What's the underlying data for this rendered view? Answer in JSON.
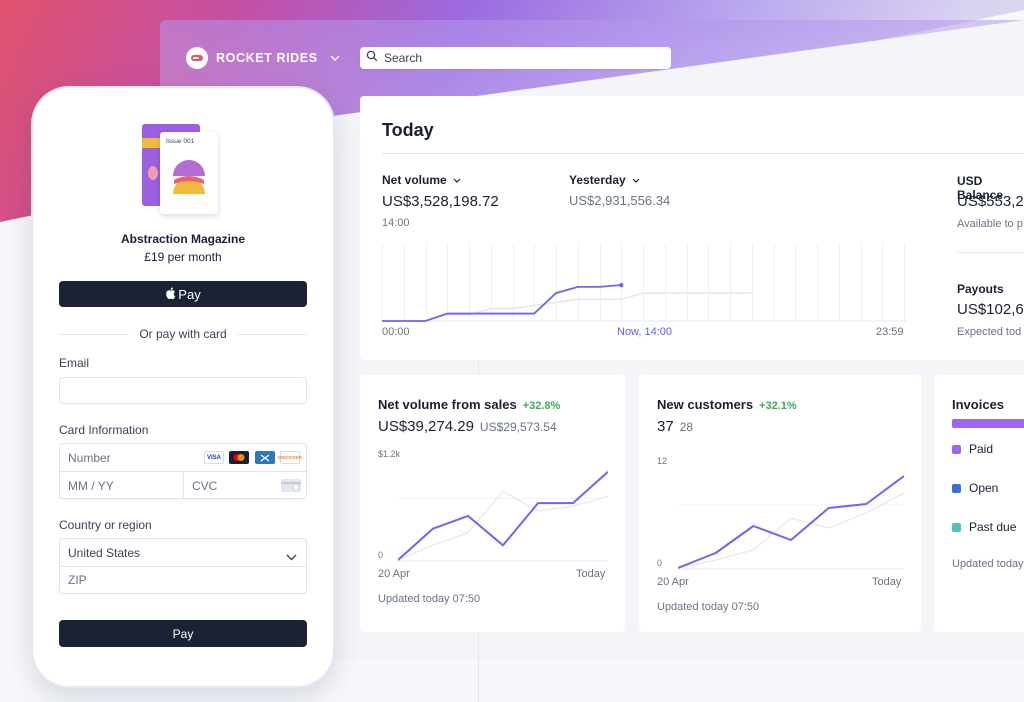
{
  "header": {
    "brand_name": "ROCKET RIDES",
    "brand_chevron_icon": "chevron-down-icon",
    "search_placeholder": "Search"
  },
  "today": {
    "title": "Today",
    "net_volume": {
      "label": "Net volume",
      "value": "US$3,528,198.72",
      "time": "14:00"
    },
    "yesterday": {
      "label": "Yesterday",
      "value": "US$2,931,556.34"
    },
    "axis": {
      "start": "00:00",
      "now": "Now, 14:00",
      "end": "23:59"
    },
    "usd_balance": {
      "label": "USD Balance",
      "value": "US$553,2",
      "sub": "Available to p"
    },
    "payouts": {
      "label": "Payouts",
      "value": "US$102,6",
      "sub": "Expected tod"
    },
    "chart_data": {
      "type": "line",
      "series": [
        {
          "values": [
            0,
            0,
            0,
            0.12,
            0.12,
            0.12,
            0.12,
            0.12,
            0.45,
            0.55,
            0.55,
            0.58
          ]
        },
        {
          "values": [
            0,
            0,
            0,
            0.1,
            0.1,
            0.2,
            0.2,
            0.25,
            0.3,
            0.35,
            0.35,
            0.35,
            0.45,
            0.45,
            0.45,
            0.45,
            0.45,
            0.45
          ]
        }
      ]
    }
  },
  "sales_card": {
    "title": "Net volume from sales",
    "change": "+32.8%",
    "value": "US$39,274.29",
    "previous": "US$29,573.54",
    "y_max_label": "$1.2k",
    "y_min_label": "0",
    "x_start": "20 Apr",
    "x_end": "Today",
    "updated": "Updated today 07:50",
    "chart_data": {
      "type": "line",
      "y_ticks": [
        "0",
        "$1.2k"
      ],
      "series": [
        {
          "values": [
            0,
            0.32,
            0.45,
            0.15,
            0.58,
            0.58,
            0.9
          ]
        },
        {
          "values": [
            0,
            0.15,
            0.28,
            0.7,
            0.5,
            0.55,
            0.65
          ]
        }
      ]
    }
  },
  "customers_card": {
    "title": "New customers",
    "change": "+32.1%",
    "value": "37",
    "previous": "28",
    "y_max_label": "12",
    "y_min_label": "0",
    "x_start": "20 Apr",
    "x_end": "Today",
    "updated": "Updated today 07:50",
    "chart_data": {
      "type": "line",
      "y_ticks": [
        "0",
        "12"
      ],
      "series": [
        {
          "values": [
            0,
            0.15,
            0.42,
            0.28,
            0.6,
            0.64,
            0.92
          ]
        },
        {
          "values": [
            0,
            0.08,
            0.18,
            0.5,
            0.4,
            0.55,
            0.75
          ]
        }
      ]
    }
  },
  "invoices_card": {
    "title": "Invoices",
    "legend": [
      {
        "label": "Paid",
        "color": "#9b66f2"
      },
      {
        "label": "Open",
        "color": "#3b6fd9"
      },
      {
        "label": "Past due",
        "color": "#49c5b1"
      }
    ],
    "updated": "Updated today"
  },
  "checkout": {
    "product_tag": "Issue 001",
    "product_name": "Abstraction Magazine",
    "price": "£19 per month",
    "apple_pay_label": "Pay",
    "or_text": "Or pay with card",
    "email_label": "Email",
    "email_value": "",
    "card_label": "Card Information",
    "number_placeholder": "Number",
    "expiry_placeholder": "MM / YY",
    "cvc_placeholder": "CVC",
    "card_brands": [
      "VISA",
      "mastercard",
      "amex",
      "DISCOVER"
    ],
    "country_label": "Country or region",
    "country_value": "United States",
    "zip_placeholder": "ZIP",
    "pay_button": "Pay"
  },
  "colors": {
    "accent": "#635bff",
    "positive": "#3dab5a",
    "dark_button": "#1a2233"
  }
}
